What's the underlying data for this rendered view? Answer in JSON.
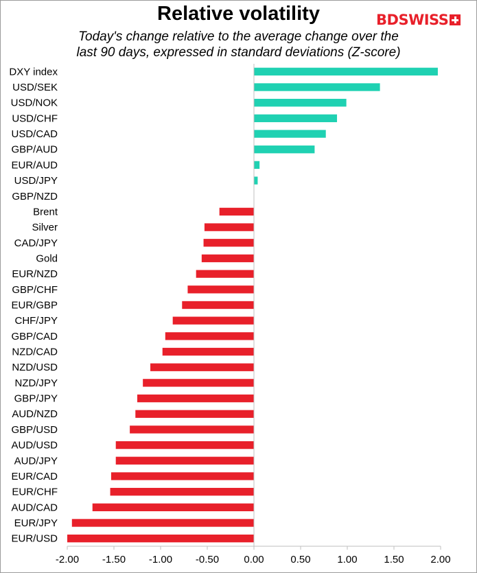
{
  "header": {
    "title": "Relative volatility",
    "subtitle_line1": "Today's change relative to the  average change over the",
    "subtitle_line2": "last 90 days, expressed in standard deviations (Z-score)",
    "logo_bd": "BD",
    "logo_swiss": "SWISS"
  },
  "colors": {
    "positive": "#1fd1b2",
    "negative": "#e8202a"
  },
  "chart_data": {
    "type": "bar",
    "orientation": "horizontal",
    "title": "Relative volatility",
    "subtitle": "Today's change relative to the  average change over the last 90 days, expressed in standard deviations (Z-score)",
    "xlabel": "",
    "ylabel": "",
    "xlim": [
      -2.0,
      2.0
    ],
    "xticks": [
      "-2.00",
      "-1.50",
      "-1.00",
      "-0.50",
      "0.00",
      "0.50",
      "1.00",
      "1.50",
      "2.00"
    ],
    "grid": false,
    "categories": [
      "DXY index",
      "USD/SEK",
      "USD/NOK",
      "USD/CHF",
      "USD/CAD",
      "GBP/AUD",
      "EUR/AUD",
      "USD/JPY",
      "GBP/NZD",
      "Brent",
      "Silver",
      "CAD/JPY",
      "Gold",
      "EUR/NZD",
      "GBP/CHF",
      "EUR/GBP",
      "CHF/JPY",
      "GBP/CAD",
      "NZD/CAD",
      "NZD/USD",
      "NZD/JPY",
      "GBP/JPY",
      "AUD/NZD",
      "GBP/USD",
      "AUD/USD",
      "AUD/JPY",
      "EUR/CAD",
      "EUR/CHF",
      "AUD/CAD",
      "EUR/JPY",
      "EUR/USD"
    ],
    "values": [
      1.97,
      1.35,
      0.99,
      0.89,
      0.77,
      0.65,
      0.06,
      0.04,
      0.0,
      -0.37,
      -0.53,
      -0.54,
      -0.56,
      -0.62,
      -0.71,
      -0.77,
      -0.87,
      -0.95,
      -0.98,
      -1.11,
      -1.19,
      -1.25,
      -1.27,
      -1.33,
      -1.48,
      -1.48,
      -1.53,
      -1.54,
      -1.73,
      -1.95,
      -2.0
    ]
  }
}
